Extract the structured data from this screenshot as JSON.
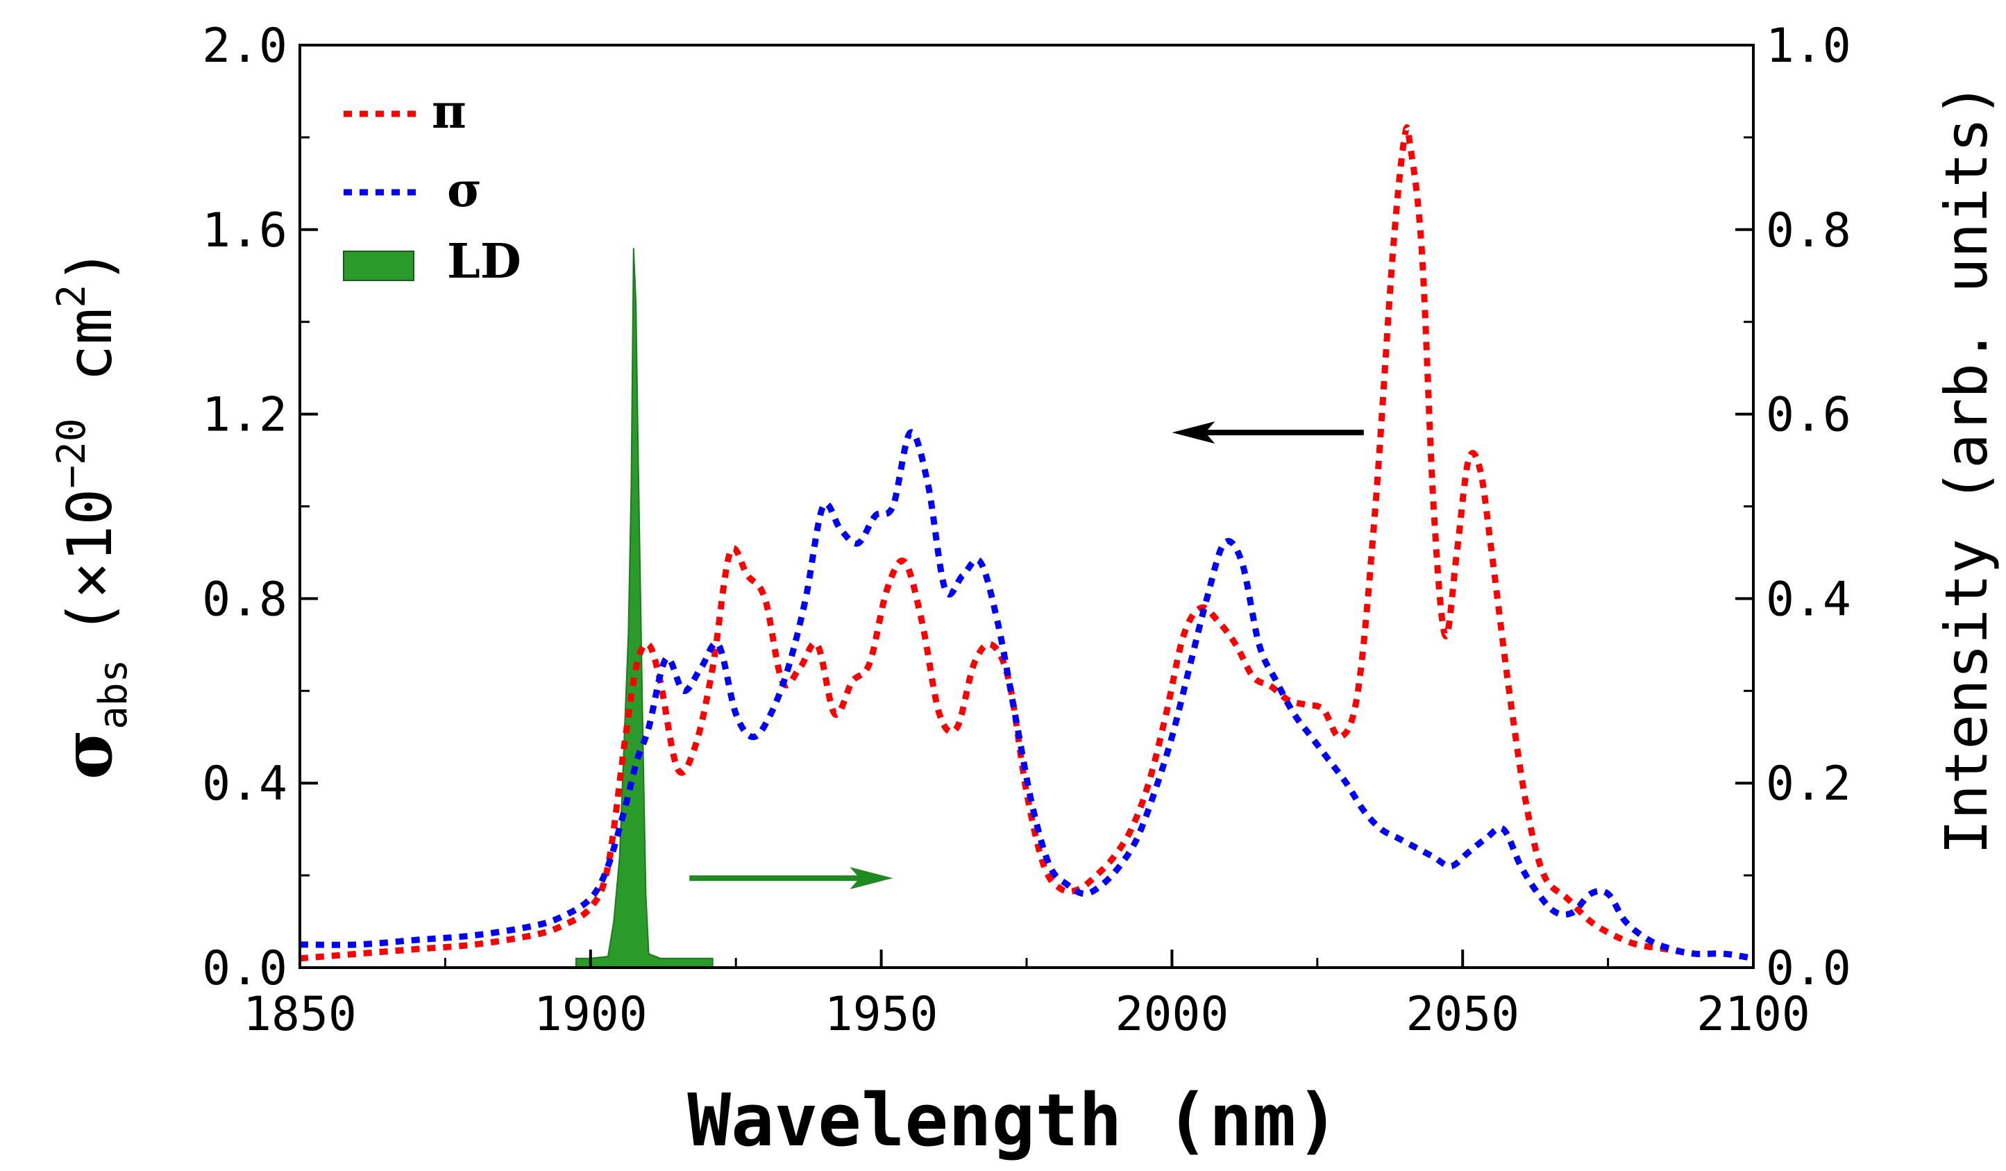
{
  "chart_data": {
    "type": "line",
    "title": "",
    "xlabel": "Wavelength (nm)",
    "ylabel_left": {
      "symbol": "σ",
      "subscript": "abs",
      "unit_prefix": "(×10",
      "exponent": "−20",
      "unit_base": " cm",
      "unit_exp": "2",
      "unit_close": ")"
    },
    "ylabel_right": "Intensity (arb. units)",
    "xlim": [
      1850,
      2100
    ],
    "ylim_left": [
      0,
      2.0
    ],
    "ylim_right": [
      0,
      1.0
    ],
    "x_ticks": [
      "1850",
      "1900",
      "1950",
      "2000",
      "2050",
      "2100"
    ],
    "x_tick_values": [
      1850,
      1900,
      1950,
      2000,
      2050,
      2100
    ],
    "y_left_ticks": [
      "0.0",
      "0.4",
      "0.8",
      "1.2",
      "1.6",
      "2.0"
    ],
    "y_left_tick_values": [
      0,
      0.4,
      0.8,
      1.2,
      1.6,
      2.0
    ],
    "y_right_ticks": [
      "0.0",
      "0.2",
      "0.4",
      "0.6",
      "0.8",
      "1.0"
    ],
    "y_right_tick_values": [
      0,
      0.2,
      0.4,
      0.6,
      0.8,
      1.0
    ],
    "legend_position": "top-left",
    "series": [
      {
        "name": "π",
        "axis": "left",
        "style": "dotted",
        "color": "#ff0000",
        "x": [
          1850,
          1860,
          1870,
          1880,
          1890,
          1895,
          1900,
          1903,
          1906,
          1908,
          1910,
          1912,
          1915,
          1918,
          1921,
          1924,
          1927,
          1930,
          1933,
          1936,
          1939,
          1942,
          1945,
          1948,
          1951,
          1954,
          1957,
          1960,
          1963,
          1966,
          1969,
          1972,
          1975,
          1978,
          1981,
          1984,
          1987,
          1990,
          1993,
          1996,
          1999,
          2002,
          2005,
          2008,
          2011,
          2014,
          2017,
          2020,
          2023,
          2026,
          2029,
          2032,
          2035,
          2038,
          2040,
          2041,
          2043,
          2045,
          2047,
          2049,
          2051,
          2053,
          2055,
          2058,
          2061,
          2064,
          2068,
          2072,
          2076,
          2080,
          2085,
          2090,
          2095,
          2100
        ],
        "values": [
          0.02,
          0.03,
          0.04,
          0.05,
          0.07,
          0.09,
          0.13,
          0.22,
          0.5,
          0.66,
          0.7,
          0.62,
          0.43,
          0.48,
          0.65,
          0.9,
          0.85,
          0.8,
          0.62,
          0.65,
          0.7,
          0.55,
          0.62,
          0.66,
          0.82,
          0.88,
          0.75,
          0.55,
          0.52,
          0.66,
          0.7,
          0.62,
          0.38,
          0.22,
          0.17,
          0.17,
          0.2,
          0.24,
          0.3,
          0.4,
          0.55,
          0.72,
          0.78,
          0.75,
          0.7,
          0.63,
          0.61,
          0.58,
          0.57,
          0.56,
          0.5,
          0.6,
          1.0,
          1.55,
          1.8,
          1.78,
          1.55,
          1.0,
          0.72,
          0.9,
          1.1,
          1.08,
          0.9,
          0.6,
          0.35,
          0.2,
          0.15,
          0.1,
          0.07,
          0.05,
          0.04,
          0.03,
          0.03,
          0.02
        ]
      },
      {
        "name": "σ",
        "axis": "left",
        "style": "dotted",
        "color": "#0000ff",
        "x": [
          1850,
          1860,
          1870,
          1880,
          1890,
          1895,
          1900,
          1903,
          1906,
          1908,
          1910,
          1913,
          1916,
          1919,
          1922,
          1925,
          1928,
          1931,
          1934,
          1937,
          1940,
          1943,
          1946,
          1949,
          1952,
          1955,
          1958,
          1961,
          1964,
          1967,
          1970,
          1973,
          1976,
          1979,
          1982,
          1985,
          1988,
          1991,
          1994,
          1997,
          2000,
          2003,
          2006,
          2009,
          2012,
          2015,
          2018,
          2021,
          2024,
          2027,
          2030,
          2033,
          2036,
          2039,
          2042,
          2045,
          2048,
          2051,
          2054,
          2057,
          2060,
          2063,
          2066,
          2069,
          2072,
          2075,
          2078,
          2082,
          2086,
          2090,
          2095,
          2100
        ],
        "values": [
          0.05,
          0.05,
          0.06,
          0.07,
          0.09,
          0.11,
          0.15,
          0.22,
          0.35,
          0.45,
          0.52,
          0.67,
          0.6,
          0.65,
          0.7,
          0.55,
          0.5,
          0.55,
          0.65,
          0.8,
          1.0,
          0.95,
          0.92,
          0.98,
          1.0,
          1.16,
          1.05,
          0.82,
          0.85,
          0.88,
          0.75,
          0.55,
          0.35,
          0.22,
          0.18,
          0.16,
          0.18,
          0.22,
          0.28,
          0.38,
          0.5,
          0.65,
          0.8,
          0.92,
          0.88,
          0.7,
          0.62,
          0.55,
          0.5,
          0.45,
          0.4,
          0.34,
          0.3,
          0.28,
          0.26,
          0.24,
          0.22,
          0.25,
          0.28,
          0.3,
          0.22,
          0.16,
          0.12,
          0.12,
          0.16,
          0.16,
          0.1,
          0.06,
          0.04,
          0.03,
          0.03,
          0.02
        ]
      },
      {
        "name": "LD",
        "axis": "right",
        "style": "filled",
        "color": "#2a9a2a",
        "x": [
          1897.5,
          1900,
          1903,
          1904,
          1905,
          1906,
          1906.5,
          1907,
          1907.4,
          1907.8,
          1908.2,
          1908.6,
          1909,
          1909.5,
          1910,
          1912,
          1915,
          1918,
          1921
        ],
        "values": [
          0.01,
          0.01,
          0.012,
          0.05,
          0.12,
          0.28,
          0.36,
          0.52,
          0.78,
          0.72,
          0.55,
          0.4,
          0.25,
          0.08,
          0.015,
          0.01,
          0.01,
          0.01,
          0.01
        ]
      }
    ],
    "annotations": [
      {
        "type": "arrow",
        "color": "#000000",
        "from_x": 2033,
        "to_x": 2000,
        "y": 1.16,
        "axis": "left",
        "meaning": "points to left axis"
      },
      {
        "type": "arrow",
        "color": "#1f8a1f",
        "from_x": 1917,
        "to_x": 1952,
        "y": 0.097,
        "axis": "right",
        "meaning": "points to right axis"
      }
    ]
  }
}
